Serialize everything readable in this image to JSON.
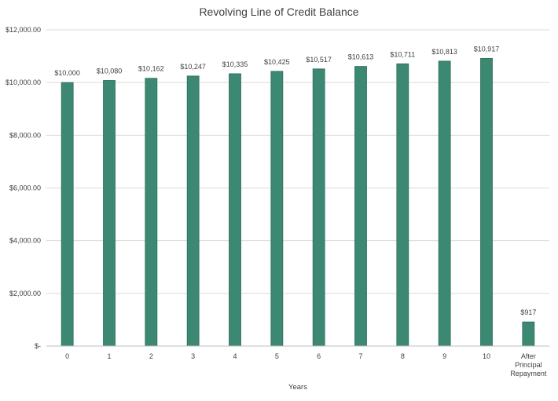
{
  "chart_data": {
    "type": "bar",
    "title": "Revolving Line of Credit Balance",
    "xlabel": "Years",
    "ylabel": "",
    "categories": [
      "0",
      "1",
      "2",
      "3",
      "4",
      "5",
      "6",
      "7",
      "8",
      "9",
      "10",
      "After Principal Repayment"
    ],
    "values": [
      10000,
      10080,
      10162,
      10247,
      10335,
      10425,
      10517,
      10613,
      10711,
      10813,
      10917,
      917
    ],
    "data_labels": [
      "$10,000",
      "$10,080",
      "$10,162",
      "$10,247",
      "$10,335",
      "$10,425",
      "$10,517",
      "$10,613",
      "$10,711",
      "$10,813",
      "$10,917",
      "$917"
    ],
    "y_ticks": [
      0,
      2000,
      4000,
      6000,
      8000,
      10000,
      12000
    ],
    "y_tick_labels": [
      "$-",
      "$2,000.00",
      "$4,000.00",
      "$6,000.00",
      "$8,000.00",
      "$10,000.00",
      "$12,000.00"
    ],
    "ylim": [
      0,
      12000
    ],
    "grid": true,
    "legend": "none",
    "bar_color": "#3c8872",
    "bar_border_color": "#2b6e5a"
  }
}
